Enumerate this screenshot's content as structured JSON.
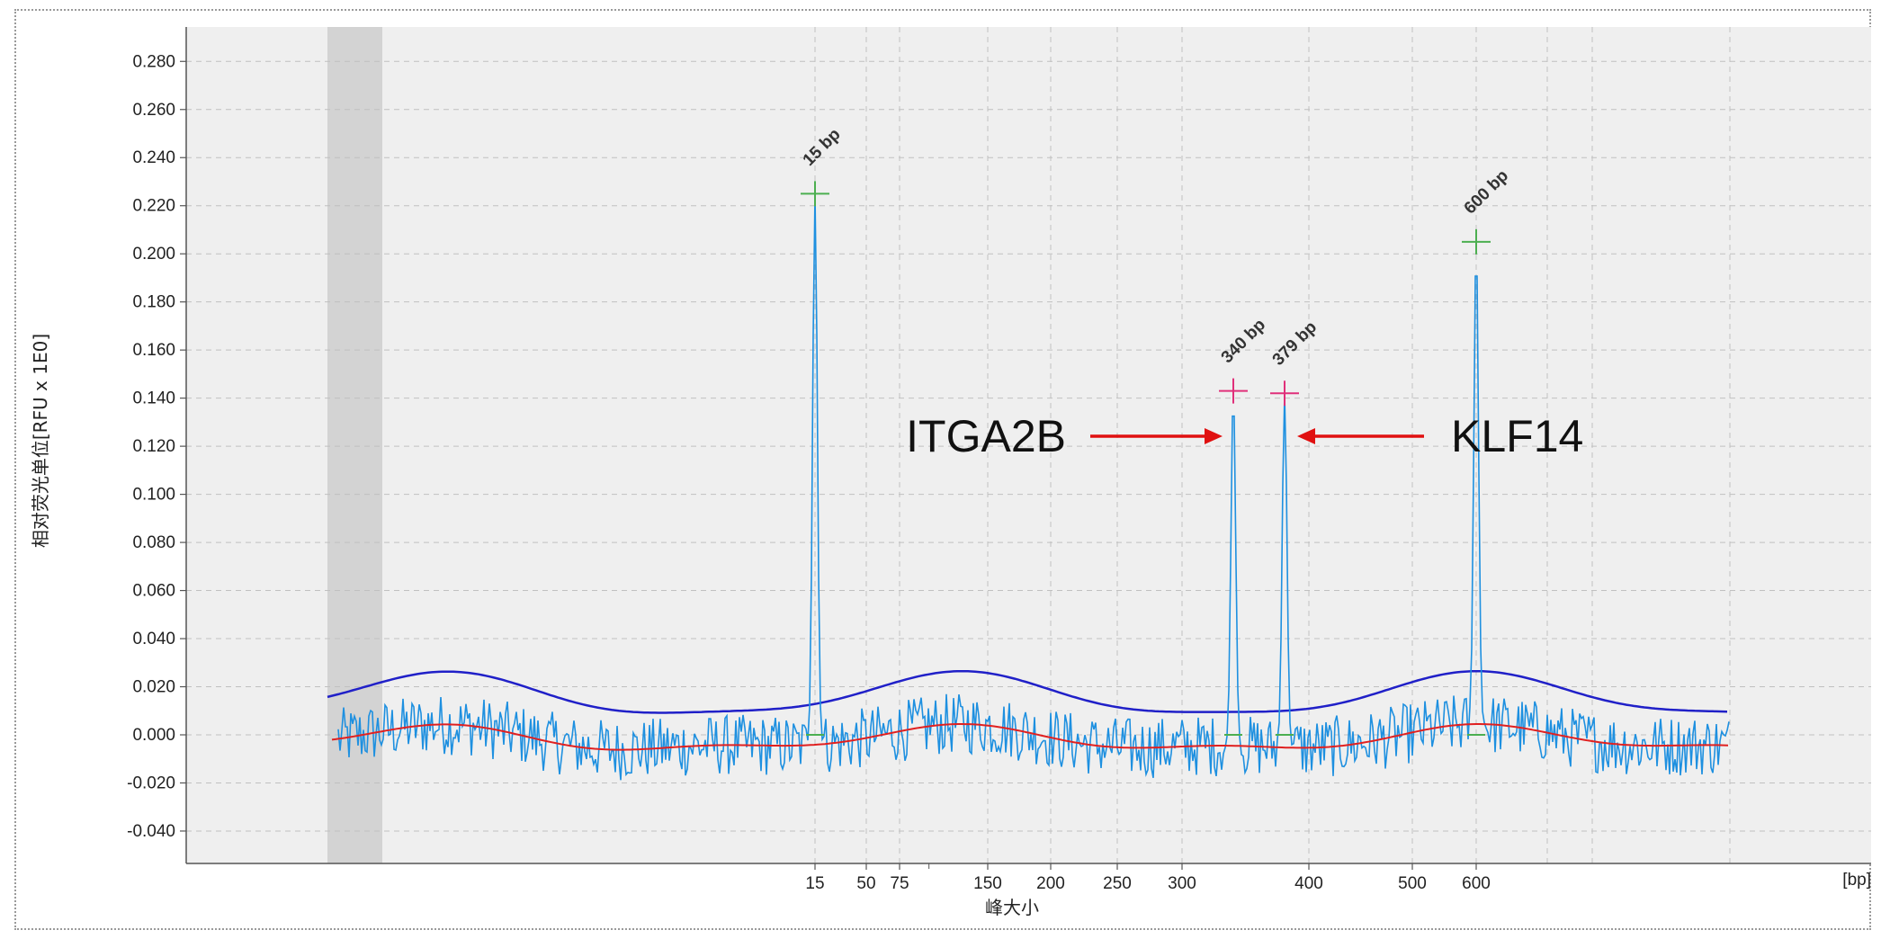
{
  "chart_data": {
    "type": "line",
    "ylabel": "相对荧光单位[RFU x 1E0]",
    "xlabel": "峰大小",
    "x_unit": "[bp]",
    "ylim": [
      -0.05,
      0.29
    ],
    "y_ticks": [
      "0.280",
      "0.260",
      "0.240",
      "0.220",
      "0.200",
      "0.180",
      "0.160",
      "0.140",
      "0.120",
      "0.100",
      "0.080",
      "0.060",
      "0.040",
      "0.020",
      "0.000",
      "-0.020",
      "-0.040"
    ],
    "x_ticks": [
      "15",
      "50",
      "75",
      "150",
      "200",
      "250",
      "300",
      "400",
      "500",
      "600"
    ],
    "grid": true,
    "colors": {
      "signal": "#1e90e0",
      "threshold": "#2020c8",
      "baseline": "#e02020",
      "marker_size": "#4caf50",
      "marker_target": "#e0307a",
      "arrow": "#e01010",
      "shaded": "#d3d3d3",
      "plot_bg": "#efefef",
      "grid": "#c0c0c0"
    },
    "peaks": [
      {
        "label": "15 bp",
        "size_bp": 15,
        "rfu": 0.225,
        "marker": "size"
      },
      {
        "label": "340 bp",
        "size_bp": 340,
        "rfu": 0.143,
        "marker": "target"
      },
      {
        "label": "379 bp",
        "size_bp": 379,
        "rfu": 0.142,
        "marker": "target"
      },
      {
        "label": "600 bp",
        "size_bp": 600,
        "rfu": 0.205,
        "marker": "size"
      }
    ],
    "series": [
      {
        "role": "signal",
        "noise_level": 0.008
      },
      {
        "role": "threshold",
        "range": [
          0.011,
          0.022
        ]
      },
      {
        "role": "baseline",
        "range": [
          -0.007,
          0.003
        ]
      }
    ],
    "annotations": [
      {
        "text": "ITGA2B",
        "points_to": "340 bp"
      },
      {
        "text": "KLF14",
        "points_to": "379 bp"
      }
    ]
  }
}
